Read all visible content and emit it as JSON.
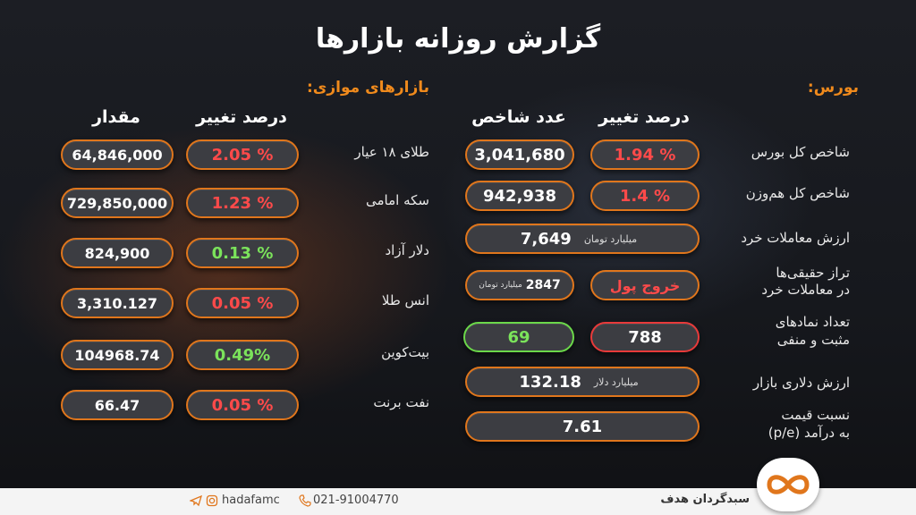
{
  "title": "گزارش روزانه بازارها",
  "bourse": {
    "section_label": "بورس:",
    "col_change": "درصد تغییر",
    "col_index": "عدد شاخص",
    "rows": {
      "total_index": {
        "label": "شاخص کل بورس",
        "change": "1.94 %",
        "value": "3,041,680"
      },
      "equal_weight": {
        "label": "شاخص کل هم‌وزن",
        "change": "1.4 %",
        "value": "942,938"
      },
      "trade_value": {
        "label": "ارزش معاملات خرد",
        "value": "7,649",
        "unit": "میلیارد تومان"
      },
      "real_balance": {
        "label_line1": "تراز حقیقی‌ها",
        "label_line2": "در معاملات خرد",
        "status": "خروج پول",
        "value": "2847",
        "unit": "میلیارد تومان"
      },
      "symbols_count": {
        "label_line1": "تعداد نمادهای",
        "label_line2": "مثبت و منفی",
        "negative": "788",
        "positive": "69"
      },
      "dollar_value": {
        "label": "ارزش دلاری بازار",
        "value": "132.18",
        "unit": "میلیارد دلار"
      },
      "pe_ratio": {
        "label_line1": "نسبت قیمت",
        "label_line2": "به درآمد (p/e)",
        "value": "7.61"
      }
    }
  },
  "parallel": {
    "section_label": "بازارهای موازی:",
    "col_change": "درصد تغییر",
    "col_amount": "مقدار",
    "rows": [
      {
        "label": "طلای ۱۸ عیار",
        "change": "2.05 %",
        "value": "64,846,000",
        "trend": "down"
      },
      {
        "label": "سکه امامی",
        "change": "1.23 %",
        "value": "729,850,000",
        "trend": "down"
      },
      {
        "label": "دلار آزاد",
        "change": "0.13 %",
        "value": "824,900",
        "trend": "up"
      },
      {
        "label": "انس طلا",
        "change": "0.05 %",
        "value": "3,310.127",
        "trend": "down"
      },
      {
        "label": "بیت‌کوین",
        "change": "0.49%",
        "value": "104968.74",
        "trend": "up"
      },
      {
        "label": "نفت برنت",
        "change": "0.05 %",
        "value": "66.47",
        "trend": "down"
      }
    ]
  },
  "footer": {
    "brand": "سبدگردان هدف",
    "phone": "021-91004770",
    "social": "hadafamc"
  },
  "colors": {
    "accent": "#e0761c",
    "negative": "#ff4a4a",
    "positive": "#7be35b",
    "section_label": "#f08a1c"
  },
  "icons": {
    "logo": "infinity-logo-icon",
    "phone": "phone-icon",
    "instagram": "instagram-icon",
    "telegram": "telegram-icon"
  }
}
